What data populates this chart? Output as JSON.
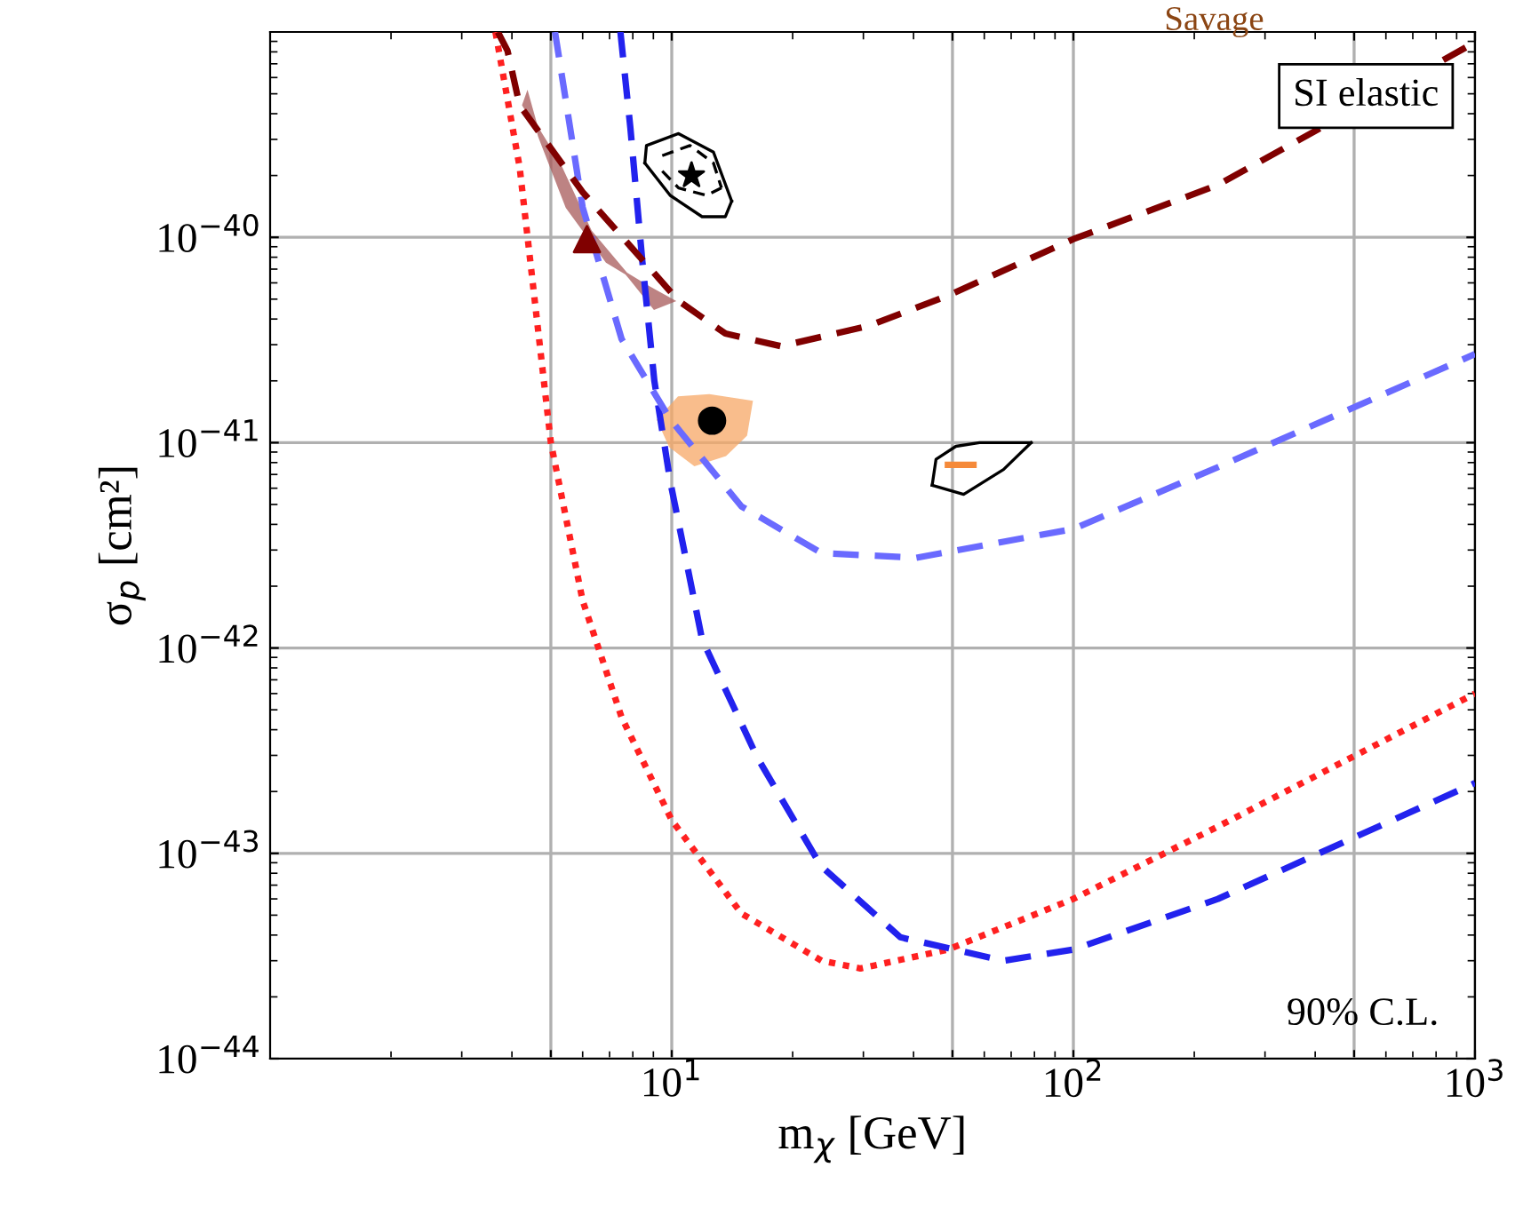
{
  "chart_data": {
    "type": "line",
    "xlabel": "m$_{χ}$ [GeV]",
    "ylabel": "σ$_{p}$ [cm²]",
    "log": "xy",
    "grid": true,
    "legend": false,
    "xlim": [
      1,
      1000
    ],
    "ylim": [
      1e-44,
      1e-39
    ],
    "xticks": [
      {
        "value": 5,
        "label": null
      },
      {
        "value": 10,
        "label": "10$^{1}$"
      },
      {
        "value": 50,
        "label": null
      },
      {
        "value": 100,
        "label": "10$^{2}$"
      },
      {
        "value": 500,
        "label": null
      },
      {
        "value": 1000,
        "label": "10$^{3}$"
      }
    ],
    "yticks": [
      {
        "value": 1e-44,
        "label": "10$^{−44}$"
      },
      {
        "value": 1e-43,
        "label": "10$^{−43}$"
      },
      {
        "value": 1e-42,
        "label": "10$^{−42}$"
      },
      {
        "value": 1e-41,
        "label": "10$^{−41}$"
      },
      {
        "value": 1e-40,
        "label": "10$^{−40}$"
      }
    ],
    "annotations": [
      "SI elastic",
      "90% C.L.",
      "Savage"
    ],
    "series": [
      {
        "type": "area",
        "color": "#a85a5a",
        "x": [
          4.37,
          4.68,
          5.48,
          6.89,
          8.65,
          10.1,
          9.05,
          7.89,
          6.28,
          5.24,
          4.27
        ],
        "values": [
          5e-40,
          3.1e-40,
          1.4e-40,
          7.6e-41,
          5.8e-41,
          4.9e-41,
          4.5e-41,
          6.3e-41,
          1.07e-40,
          2.3e-40,
          4.4e-40
        ]
      },
      {
        "type": "area",
        "color": "#f7a866",
        "x": [
          9.25,
          10.4,
          12.4,
          15.8,
          15.3,
          13.6,
          11.4,
          9.91
        ],
        "values": [
          1.29e-41,
          1.66e-41,
          1.7e-41,
          1.58e-41,
          1.09e-41,
          8.7e-42,
          7.8e-42,
          9.6e-42
        ]
      },
      {
        "type": "line",
        "color": "#ff2020",
        "line_style": "dotted",
        "x": [
          3.64,
          4.18,
          5.0,
          6.0,
          7.5,
          10,
          14.9,
          23.6,
          29.5,
          48.7,
          100,
          229,
          1000
        ],
        "values": [
          1e-39,
          2.2e-40,
          1e-41,
          1.7e-42,
          4.6e-43,
          1.45e-43,
          5.1e-44,
          3e-44,
          2.75e-44,
          3.4e-44,
          6e-44,
          1.35e-43,
          6e-43
        ]
      },
      {
        "type": "line",
        "color": "#2222ee",
        "line_style": "dashed",
        "x": [
          7.45,
          7.89,
          8.45,
          9.05,
          9.91,
          11.9,
          16.3,
          23.5,
          37.1,
          67,
          100,
          229,
          1000
        ],
        "values": [
          1e-39,
          3.4e-40,
          7.6e-41,
          2e-41,
          6.5e-42,
          1.1e-42,
          2.95e-43,
          8.7e-44,
          3.9e-44,
          3e-44,
          3.4e-44,
          6e-44,
          2.2e-43
        ]
      },
      {
        "type": "line",
        "color": "#6a6aff",
        "line_style": "dashed",
        "x": [
          5.12,
          6.0,
          7.5,
          9.91,
          14.9,
          23.6,
          40.6,
          100,
          229,
          1000
        ],
        "values": [
          1e-39,
          1.4e-40,
          3.2e-41,
          1.3e-41,
          4.9e-42,
          2.9e-42,
          2.75e-42,
          3.8e-42,
          7.6e-42,
          2.7e-41
        ]
      },
      {
        "type": "line",
        "color": "#800000",
        "line_style": "dashed",
        "x": [
          3.69,
          3.9,
          4.18,
          6.0,
          10.4,
          13.6,
          18.7,
          30.9,
          48.7,
          100,
          229,
          1000
        ],
        "values": [
          1e-39,
          8.1e-40,
          4.4e-40,
          1.66e-40,
          4.9e-41,
          3.4e-41,
          2.95e-41,
          3.7e-41,
          5.2e-41,
          9.8e-41,
          1.8e-40,
          8.9e-40
        ]
      },
      {
        "color": "#000000",
        "line_style": "solid",
        "x": [
          8.57,
          8.65,
          10.4,
          12.7,
          14.1
        ],
        "values": [
          2.3e-40,
          2.8e-40,
          3.2e-40,
          2.6e-40,
          1.5e-40
        ]
      },
      {
        "color": "#000000",
        "line_style": "solid",
        "x": [
          8.57,
          9.91,
          11.9,
          13.6,
          14.1
        ],
        "values": [
          2.3e-40,
          1.6e-40,
          1.26e-40,
          1.26e-40,
          1.5e-40
        ]
      },
      {
        "color": "#000000",
        "line_style": "dashed",
        "x": [
          9.47,
          11.1,
          12.7,
          13.3
        ],
        "values": [
          2.5e-40,
          2.8e-40,
          2.3e-40,
          1.74e-40
        ]
      },
      {
        "color": "#000000",
        "line_style": "dashed",
        "x": [
          9.47,
          10.4,
          12.2,
          13.3
        ],
        "values": [
          2.1e-40,
          1.74e-40,
          1.6e-40,
          1.74e-40
        ]
      },
      {
        "color": "#000000",
        "line_style": "solid",
        "x": [
          44.5,
          45.5,
          51,
          58.4,
          78.5
        ],
        "values": [
          6.2e-42,
          8.3e-42,
          9.6e-42,
          1e-41,
          1e-41
        ]
      },
      {
        "color": "#000000",
        "line_style": "solid",
        "x": [
          44.5,
          53.3,
          67,
          78.5
        ],
        "values": [
          6.2e-42,
          5.6e-42,
          7.4e-42,
          1e-41
        ]
      },
      {
        "color": "#f58a3a",
        "line_style": "solid",
        "x": [
          48.7,
          56.4
        ],
        "values": [
          7.8e-42,
          7.8e-42
        ]
      },
      {
        "type": "scatter",
        "color": "#800000",
        "marker": "triangle",
        "x": [
          6.15
        ],
        "values": [
          9.8e-41
        ]
      },
      {
        "type": "scatter",
        "color": "#000000",
        "marker": "star",
        "x": [
          11.2
        ],
        "values": [
          2e-40
        ]
      },
      {
        "type": "scatter",
        "color": "#000000",
        "marker": "circle",
        "x": [
          12.6
        ],
        "values": [
          1.28e-41
        ]
      }
    ]
  }
}
